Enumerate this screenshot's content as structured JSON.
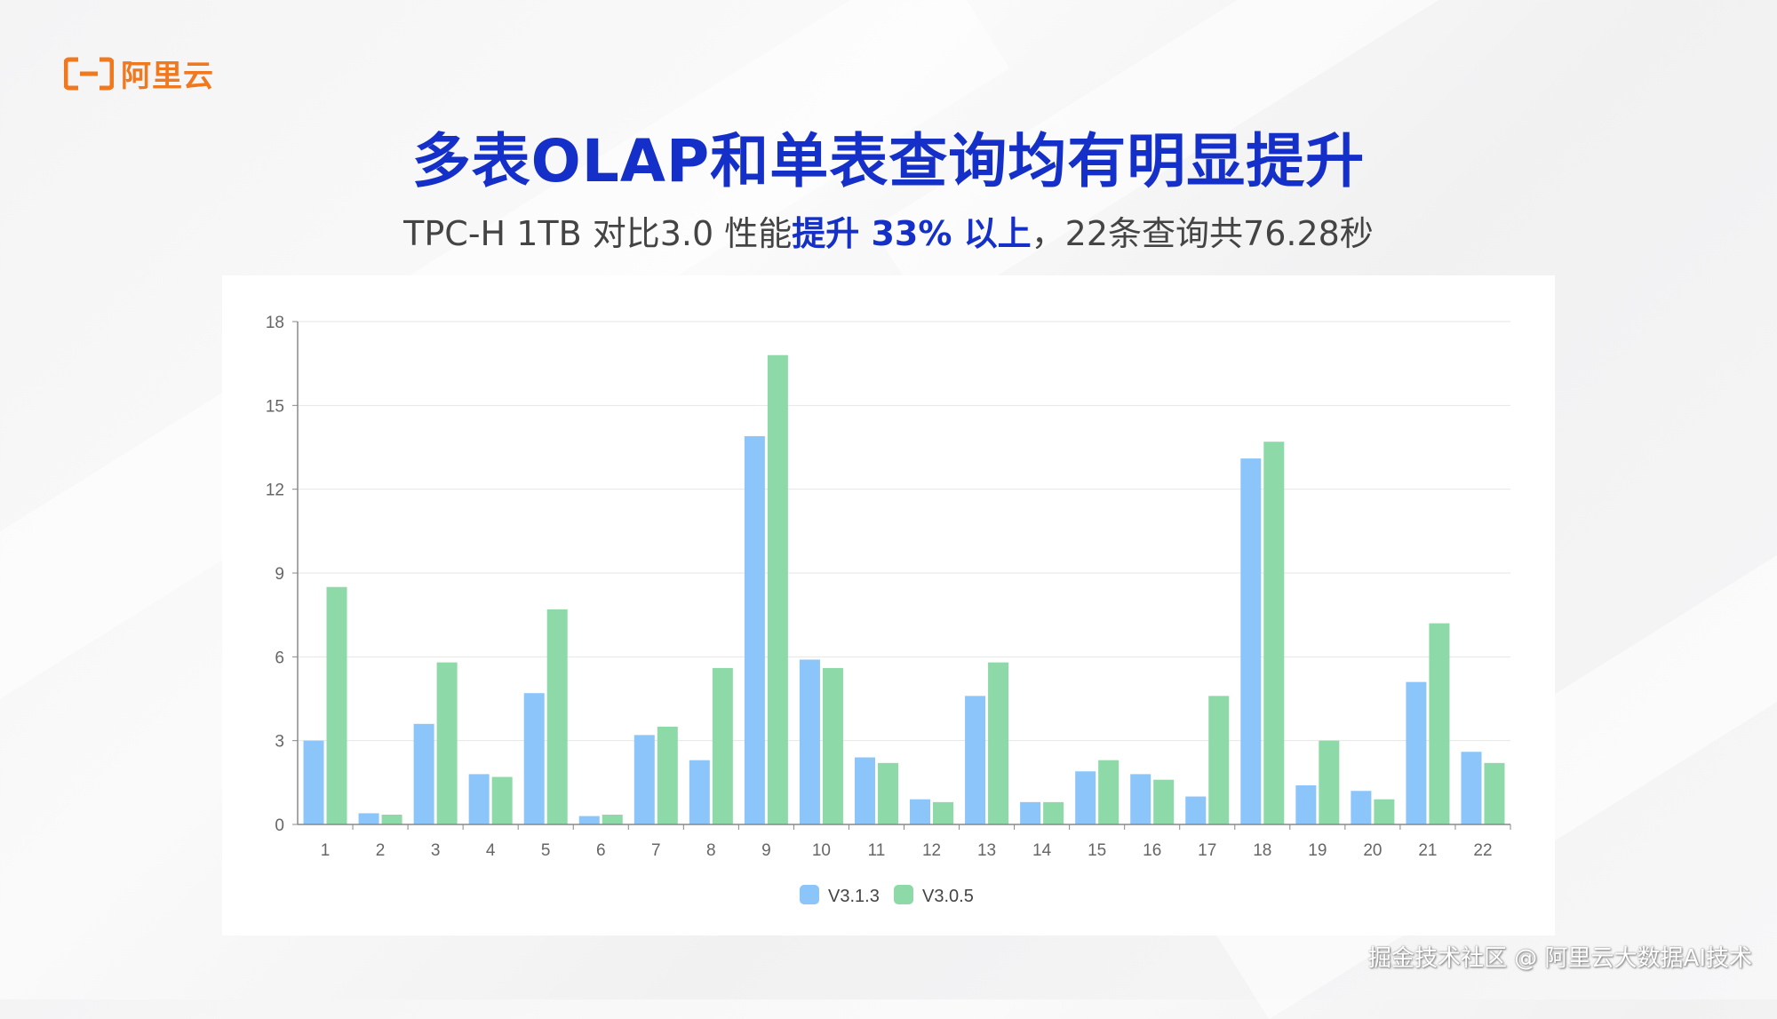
{
  "brand": {
    "name": "阿里云",
    "color": "#f0781e"
  },
  "title": "多表OLAP和单表查询均有明显提升",
  "subtitle": {
    "part1": "TPC-H 1TB 对比3.0 性能",
    "highlight": "提升 33% 以上",
    "part2": "，22条查询共76.28秒"
  },
  "watermark": "掘金技术社区 @ 阿里云大数据AI技术",
  "colors": {
    "accent": "#1530c8",
    "series_v313": "#8cc5fa",
    "series_v305": "#8dd9a8"
  },
  "chart_data": {
    "type": "bar",
    "title": "",
    "xlabel": "",
    "ylabel": "",
    "ylim": [
      0,
      18
    ],
    "yticks": [
      0,
      3,
      6,
      9,
      12,
      15,
      18
    ],
    "grid": true,
    "legend_position": "bottom-center",
    "categories": [
      "1",
      "2",
      "3",
      "4",
      "5",
      "6",
      "7",
      "8",
      "9",
      "10",
      "11",
      "12",
      "13",
      "14",
      "15",
      "16",
      "17",
      "18",
      "19",
      "20",
      "21",
      "22"
    ],
    "series": [
      {
        "name": "V3.1.3",
        "color": "#8cc5fa",
        "values": [
          3.0,
          0.4,
          3.6,
          1.8,
          4.7,
          0.3,
          3.2,
          2.3,
          13.9,
          5.9,
          2.4,
          0.9,
          4.6,
          0.8,
          1.9,
          1.8,
          1.0,
          13.1,
          1.4,
          1.2,
          5.1,
          2.6
        ]
      },
      {
        "name": "V3.0.5",
        "color": "#8dd9a8",
        "values": [
          8.5,
          0.35,
          5.8,
          1.7,
          7.7,
          0.35,
          3.5,
          5.6,
          16.8,
          5.6,
          2.2,
          0.8,
          5.8,
          0.8,
          2.3,
          1.6,
          4.6,
          13.7,
          3.0,
          0.9,
          7.2,
          2.2
        ]
      }
    ]
  }
}
